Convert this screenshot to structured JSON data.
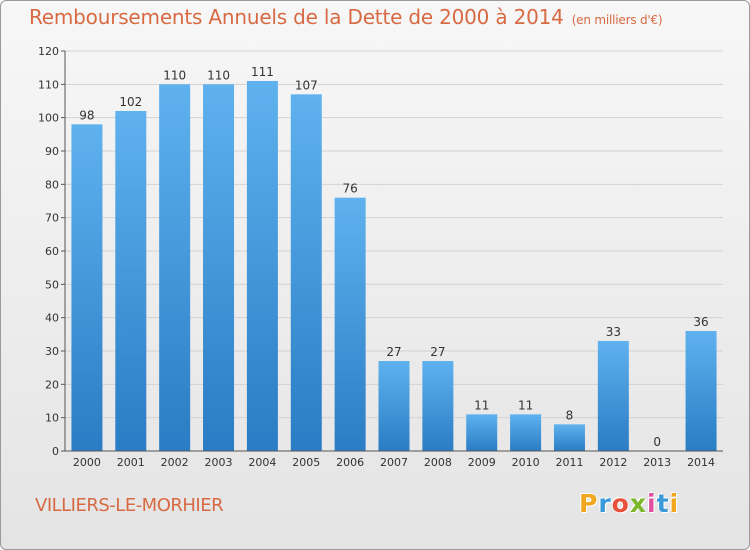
{
  "header": {
    "title": "Remboursements Annuels de la Dette de 2000 à 2014",
    "unit_note": "(en milliers d'€)"
  },
  "footer": {
    "location": "VILLIERS-LE-MORHIER",
    "logo": {
      "letters": [
        "P",
        "r",
        "o",
        "x",
        "i",
        "t",
        "i"
      ],
      "colors": [
        "#f2a61f",
        "#3a9ad9",
        "#e8523a",
        "#7ab829",
        "#e24fa0",
        "#3a9ad9",
        "#f2a61f"
      ]
    }
  },
  "colors": {
    "bar_top": "#5fb2ee",
    "bar_bottom": "#2a7cc4",
    "title": "#d86a43"
  },
  "chart_data": {
    "type": "bar",
    "title": "Remboursements Annuels de la Dette de 2000 à 2014",
    "subtitle": "(en milliers d'€)",
    "categories": [
      "2000",
      "2001",
      "2002",
      "2003",
      "2004",
      "2005",
      "2006",
      "2007",
      "2008",
      "2009",
      "2010",
      "2011",
      "2012",
      "2013",
      "2014"
    ],
    "values": [
      98,
      102,
      110,
      110,
      111,
      107,
      76,
      27,
      27,
      11,
      11,
      8,
      33,
      0,
      36
    ],
    "ylim": [
      0,
      120
    ],
    "yticks": [
      0,
      10,
      20,
      30,
      40,
      50,
      60,
      70,
      80,
      90,
      100,
      110,
      120
    ],
    "grid": true,
    "legend": "none"
  }
}
